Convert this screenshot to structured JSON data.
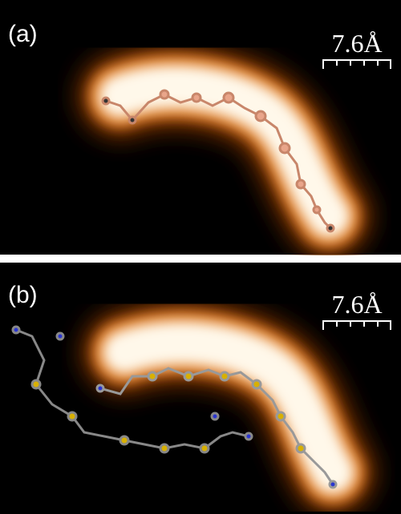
{
  "panels": [
    {
      "label": "(a)",
      "scale": "7.6Å"
    },
    {
      "label": "(b)",
      "scale": "7.6Å"
    }
  ]
}
